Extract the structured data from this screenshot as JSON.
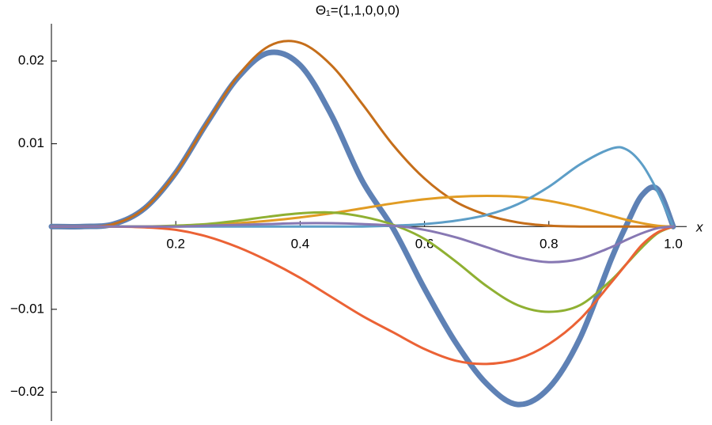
{
  "chart_data": {
    "type": "line",
    "title": "Θ₁=(1,1,0,0,0)",
    "x_label": "x",
    "x": [
      0,
      0.05,
      0.1,
      0.15,
      0.2,
      0.25,
      0.3,
      0.35,
      0.4,
      0.45,
      0.5,
      0.55,
      0.6,
      0.65,
      0.7,
      0.75,
      0.8,
      0.85,
      0.9,
      0.925,
      0.95,
      0.975,
      1
    ],
    "series": [
      {
        "color": "#5E81B5",
        "values": [
          0,
          0,
          0.0003,
          0.0022,
          0.0065,
          0.0125,
          0.018,
          0.021,
          0.0195,
          0.0135,
          0.0055,
          -0.0003,
          -0.0075,
          -0.014,
          -0.019,
          -0.0215,
          -0.0195,
          -0.0135,
          -0.004,
          0.0002,
          0.0038,
          0.0045,
          0
        ]
      },
      {
        "color": "#C56E1A",
        "values": [
          0,
          0,
          0.0003,
          0.0022,
          0.0065,
          0.0125,
          0.0182,
          0.0218,
          0.0222,
          0.0195,
          0.0148,
          0.0098,
          0.0058,
          0.003,
          0.0014,
          0.0005,
          0.0001,
          0,
          0,
          0,
          0,
          0,
          0
        ]
      },
      {
        "color": "#E19C24",
        "values": [
          0,
          0,
          0,
          0,
          5e-05,
          0.0002,
          0.0004,
          0.0007,
          0.0011,
          0.0016,
          0.0022,
          0.0028,
          0.0033,
          0.0036,
          0.0037,
          0.0036,
          0.0031,
          0.0023,
          0.0013,
          0.0008,
          0.0004,
          0.0001,
          0
        ]
      },
      {
        "color": "#5D9EC7",
        "values": [
          0,
          0,
          0,
          0,
          0,
          0,
          0,
          0,
          0,
          0,
          0,
          0.0001,
          0.0003,
          0.0007,
          0.0014,
          0.0027,
          0.0048,
          0.0075,
          0.0094,
          0.0093,
          0.0075,
          0.0042,
          0
        ]
      },
      {
        "color": "#8FB032",
        "values": [
          0,
          0,
          0,
          0,
          0.0001,
          0.0003,
          0.0007,
          0.0012,
          0.0016,
          0.0017,
          0.0012,
          0.0002,
          -0.0015,
          -0.0042,
          -0.0072,
          -0.0095,
          -0.0103,
          -0.0095,
          -0.0065,
          -0.0045,
          -0.0025,
          -0.0008,
          0
        ]
      },
      {
        "color": "#EB6235",
        "values": [
          0,
          0,
          0,
          -0.0001,
          -0.0004,
          -0.0012,
          -0.0025,
          -0.0042,
          -0.0062,
          -0.0085,
          -0.0108,
          -0.0128,
          -0.0148,
          -0.0162,
          -0.0166,
          -0.016,
          -0.0142,
          -0.0112,
          -0.0068,
          -0.0045,
          -0.0022,
          -0.0007,
          0
        ]
      },
      {
        "color": "#8778B3",
        "values": [
          0,
          0,
          0,
          0,
          0,
          0.0001,
          0.0002,
          0.0003,
          0.0004,
          0.0004,
          0.0003,
          0.0001,
          -0.0004,
          -0.0013,
          -0.0025,
          -0.0037,
          -0.0043,
          -0.0039,
          -0.0025,
          -0.0016,
          -0.0008,
          -0.0002,
          0
        ]
      }
    ],
    "xlim": [
      0,
      1
    ],
    "xticks": [
      0.2,
      0.4,
      0.6,
      0.8,
      {
        "value": 1,
        "label": "1.0"
      }
    ],
    "ylim": [
      -0.0235,
      0.0245
    ],
    "yticks": [
      {
        "value": -0.02,
        "label": "−0.02"
      },
      {
        "value": -0.01,
        "label": "−0.01"
      },
      0.01,
      0.02
    ]
  }
}
